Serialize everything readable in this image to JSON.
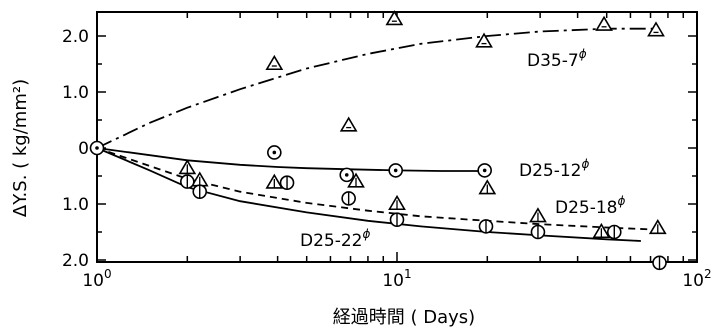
{
  "chart_data": {
    "type": "scatter",
    "xscale": "log",
    "xlim": [
      1,
      100
    ],
    "ylim": [
      -2.0,
      2.3
    ],
    "x_ticks": [
      {
        "value": 1,
        "base": "10",
        "exp": "0"
      },
      {
        "value": 10,
        "base": "10",
        "exp": "1"
      },
      {
        "value": 100,
        "base": "10",
        "exp": "2"
      }
    ],
    "y_ticks": [
      {
        "value": 2.0,
        "label": "2.0"
      },
      {
        "value": 1.0,
        "label": "1.0"
      },
      {
        "value": 0,
        "label": "0"
      },
      {
        "value": -1.0,
        "label": "1.0"
      },
      {
        "value": -2.0,
        "label": "2.0"
      }
    ],
    "xlabel": "経過時間 ( Days)",
    "ylabel": "ΔY.S. ( kg/mm²)",
    "series": [
      {
        "name": "D35-7",
        "name_sup": "ϕ",
        "marker": "triangle",
        "line_style": "dash-dot",
        "line_x": [
          1,
          1.5,
          2,
          3,
          5,
          8,
          12,
          20,
          30,
          50,
          72
        ],
        "line_y": [
          0,
          0.45,
          0.72,
          1.05,
          1.42,
          1.68,
          1.86,
          2.0,
          2.08,
          2.13,
          2.13
        ],
        "points": [
          [
            1,
            0
          ],
          [
            3.9,
            1.5
          ],
          [
            6.9,
            0.4
          ],
          [
            9.8,
            2.3
          ],
          [
            19.5,
            1.9
          ],
          [
            49,
            2.2
          ],
          [
            73,
            2.1
          ]
        ]
      },
      {
        "name": "D25-12",
        "name_sup": "ϕ",
        "marker": "circle-dot",
        "line_style": "solid",
        "line_x": [
          1,
          2,
          3,
          4,
          5,
          7,
          10,
          14,
          20
        ],
        "line_y": [
          0,
          -0.22,
          -0.3,
          -0.34,
          -0.36,
          -0.38,
          -0.4,
          -0.41,
          -0.41
        ],
        "points": [
          [
            1,
            0
          ],
          [
            3.9,
            -0.08
          ],
          [
            6.8,
            -0.48
          ],
          [
            9.9,
            -0.4
          ],
          [
            19.6,
            -0.4
          ]
        ]
      },
      {
        "name": "D25-18",
        "name_sup": "ϕ",
        "marker": "triangle-v",
        "line_style": "dashed",
        "line_x": [
          1,
          2,
          3,
          5,
          8,
          12,
          20,
          30,
          50,
          75
        ],
        "line_y": [
          0,
          -0.55,
          -0.78,
          -0.98,
          -1.12,
          -1.22,
          -1.3,
          -1.36,
          -1.42,
          -1.46
        ],
        "points": [
          [
            2,
            -0.36
          ],
          [
            2.2,
            -0.58
          ],
          [
            3.9,
            -0.62
          ],
          [
            7.3,
            -0.6
          ],
          [
            10,
            -1.0
          ],
          [
            20,
            -0.72
          ],
          [
            29.5,
            -1.22
          ],
          [
            48,
            -1.5
          ],
          [
            74,
            -1.43
          ]
        ]
      },
      {
        "name": "D25-22",
        "name_sup": "ϕ",
        "marker": "circle-v",
        "line_style": "solid",
        "line_x": [
          1,
          1.5,
          2,
          3,
          5,
          8,
          12,
          20,
          30,
          50,
          65
        ],
        "line_y": [
          0,
          -0.4,
          -0.7,
          -0.95,
          -1.15,
          -1.3,
          -1.4,
          -1.5,
          -1.56,
          -1.63,
          -1.66
        ],
        "points": [
          [
            2,
            -0.6
          ],
          [
            2.2,
            -0.78
          ],
          [
            4.3,
            -0.62
          ],
          [
            6.9,
            -0.9
          ],
          [
            10,
            -1.28
          ],
          [
            19.8,
            -1.4
          ],
          [
            29.5,
            -1.5
          ],
          [
            53,
            -1.5
          ],
          [
            75,
            -2.05
          ]
        ]
      }
    ]
  }
}
